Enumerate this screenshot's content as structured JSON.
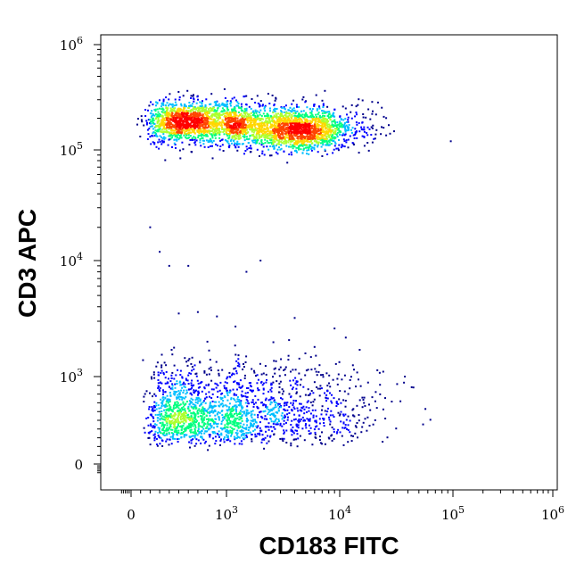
{
  "chart_data": {
    "type": "scatter",
    "subtype": "flow-cytometry-density-dot-plot",
    "xlabel": "CD183 FITC",
    "ylabel": "CD3 APC",
    "x_scale": "biexponential",
    "y_scale": "biexponential",
    "xlim": [
      -100,
      1000000
    ],
    "ylim": [
      -100,
      1000000
    ],
    "x_ticks": [
      {
        "base": "0",
        "exp": ""
      },
      {
        "base": "10",
        "exp": "3"
      },
      {
        "base": "10",
        "exp": "4"
      },
      {
        "base": "10",
        "exp": "5"
      },
      {
        "base": "10",
        "exp": "6"
      }
    ],
    "y_ticks": [
      {
        "base": "0",
        "exp": ""
      },
      {
        "base": "10",
        "exp": "3"
      },
      {
        "base": "10",
        "exp": "4"
      },
      {
        "base": "10",
        "exp": "5"
      },
      {
        "base": "10",
        "exp": "6"
      }
    ],
    "grid": false,
    "legend": "none",
    "density_colors": [
      "#00008b",
      "#0000ff",
      "#00bfff",
      "#00ff7f",
      "#adff2f",
      "#ffd700",
      "#ff4500",
      "#ff0000"
    ],
    "populations": [
      {
        "cx": 700,
        "cy": 190000,
        "sx": 0.22,
        "sy": 0.09,
        "n": 1400
      },
      {
        "cx": 4500,
        "cy": 150000,
        "sx": 0.24,
        "sy": 0.09,
        "n": 1100
      },
      {
        "cx": 2000,
        "cy": 170000,
        "sx": 0.45,
        "sy": 0.11,
        "n": 1100
      },
      {
        "cx": 650,
        "cy": 560,
        "sx": 0.24,
        "sy": 0.16,
        "n": 1100
      },
      {
        "cx": 3000,
        "cy": 600,
        "sx": 0.45,
        "sy": 0.18,
        "n": 800
      }
    ],
    "outliers": [
      [
        200,
        20000
      ],
      [
        300,
        12000
      ],
      [
        400,
        9000
      ],
      [
        600,
        9000
      ],
      [
        2000,
        10000
      ],
      [
        1500,
        8000
      ],
      [
        500,
        3500
      ],
      [
        700,
        3600
      ],
      [
        900,
        3300
      ],
      [
        4000,
        3200
      ],
      [
        1200,
        2700
      ],
      [
        9000,
        2600
      ],
      [
        6000,
        1800
      ],
      [
        15000,
        1700
      ],
      [
        800,
        2000
      ]
    ]
  }
}
